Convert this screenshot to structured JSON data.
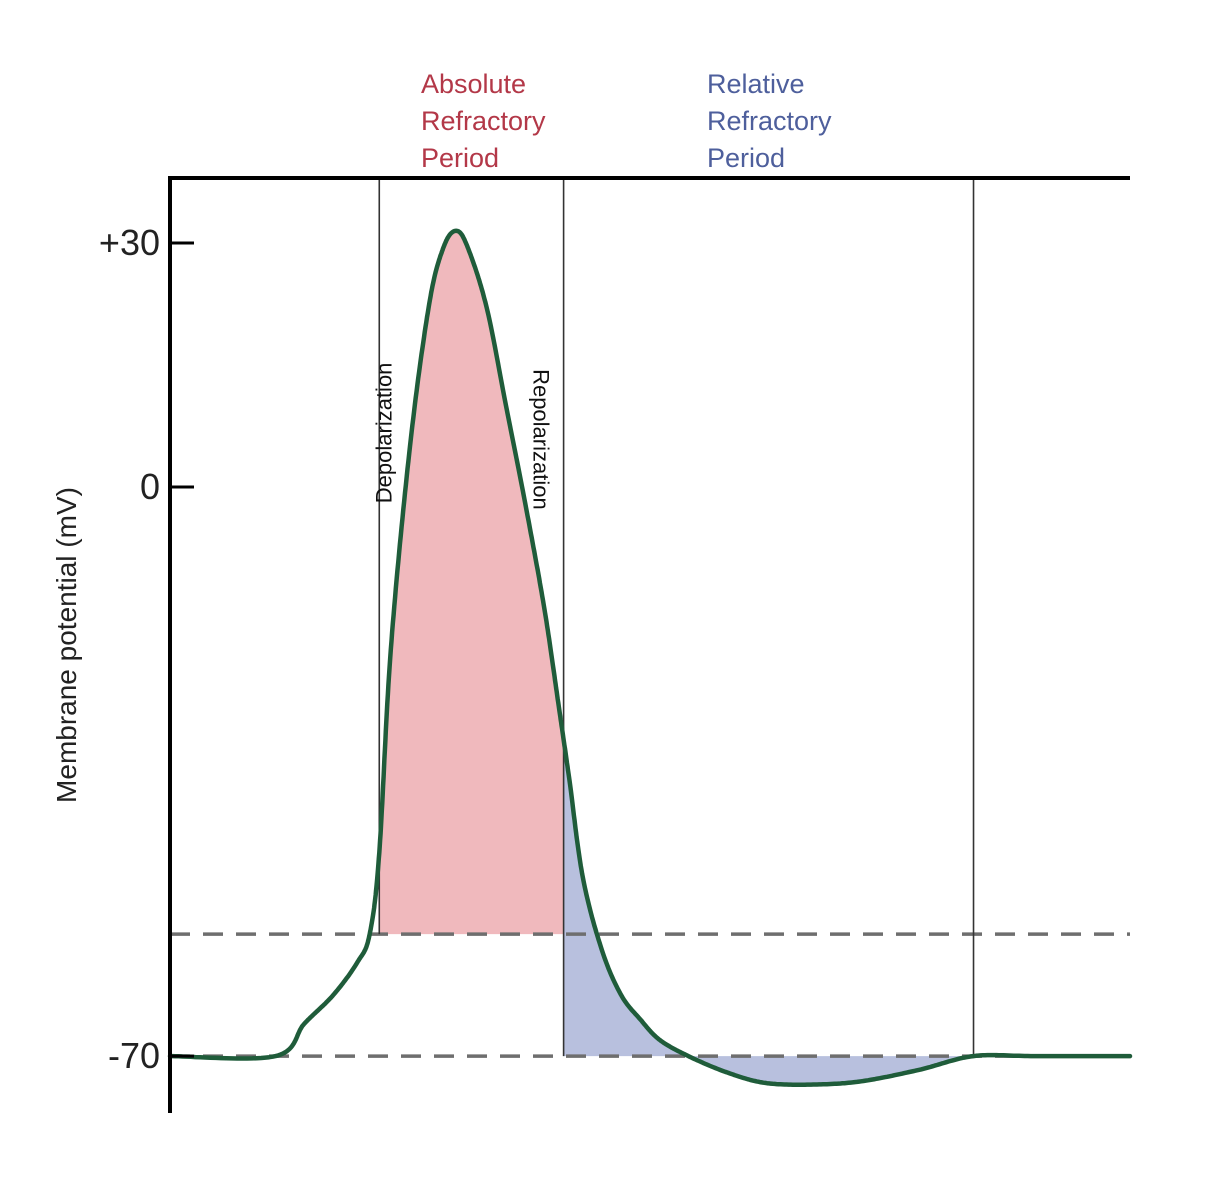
{
  "chart_data": {
    "type": "line",
    "title": "",
    "xlabel": "",
    "ylabel": "Membrane potential (mV)",
    "yticks": [
      {
        "value": 30,
        "label": "+30"
      },
      {
        "value": 0,
        "label": "0"
      },
      {
        "value": -70,
        "label": "-70"
      }
    ],
    "ylim": [
      -77,
      38
    ],
    "xlim": [
      0,
      100
    ],
    "grid": false,
    "legend": "none",
    "series": [
      {
        "x": [
          0,
          11,
          14,
          17,
          19.5,
          20.8,
          21.8,
          23,
          25,
          27,
          28.5,
          29.8,
          31,
          33,
          35,
          37,
          39,
          40.5,
          41.6,
          43,
          45,
          47,
          49,
          51,
          54,
          58,
          62,
          67,
          72,
          78,
          83.7,
          90,
          100
        ],
        "y": [
          -70,
          -70,
          -66,
          -62.5,
          -58.5,
          -55,
          -45,
          -20,
          5,
          22.5,
          29.5,
          31.5,
          29.5,
          22,
          10,
          -2,
          -15,
          -27,
          -36,
          -48,
          -57,
          -62.5,
          -65.5,
          -68,
          -70,
          -72,
          -73.3,
          -73.5,
          -73.1,
          -71.7,
          -70,
          -70,
          -70
        ]
      }
    ],
    "reference_lines": {
      "threshold_mv": -55,
      "resting_mv": -70,
      "boundaries_x": [
        21.8,
        41.0,
        83.7
      ]
    },
    "periods": [
      {
        "label": "Absolute\nRefractory\nPeriod",
        "color": "#b33848",
        "fill": "#f0b9bd"
      },
      {
        "label": "Relative\nRefractory\nPeriod",
        "color": "#4e5f9c",
        "fill": "#b8c0de"
      }
    ],
    "annotations": [
      {
        "text": "Depolarization"
      },
      {
        "text": "Repolarization"
      }
    ],
    "colors": {
      "trace": "#1f5c3a",
      "axis": "#000000",
      "dashed": "#6e6e6e",
      "boundary": "#333333"
    }
  }
}
